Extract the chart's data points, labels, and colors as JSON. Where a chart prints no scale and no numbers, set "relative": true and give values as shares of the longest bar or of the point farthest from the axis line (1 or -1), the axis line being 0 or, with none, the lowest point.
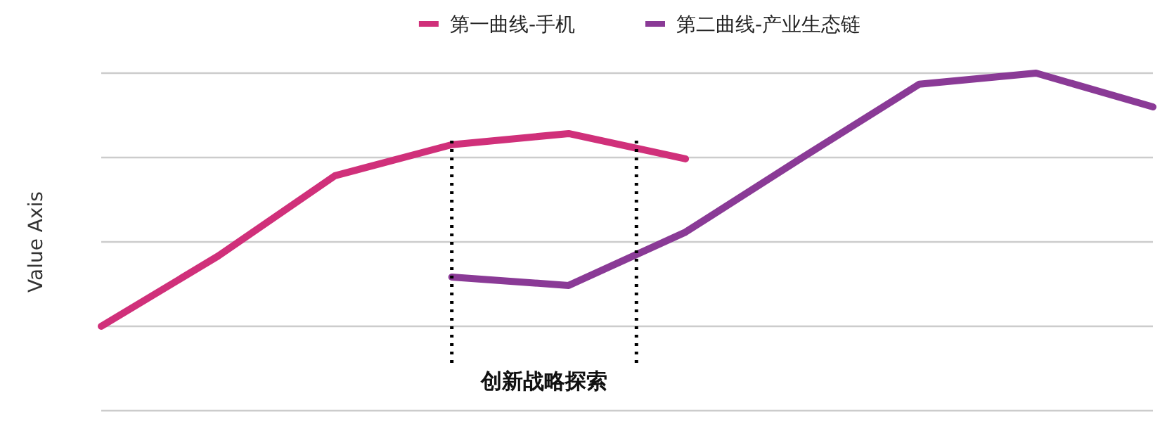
{
  "chart_data": {
    "type": "line",
    "relative": true,
    "ylabel": "Value Axis",
    "categories": [
      null,
      null,
      null,
      null,
      null,
      null,
      null,
      null,
      null,
      null
    ],
    "series": [
      {
        "name": "第一曲线-手机",
        "color": "#d0307a",
        "values": [
          0.25,
          0.458,
          0.696,
          0.788,
          0.821,
          0.746,
          null,
          null,
          null,
          null
        ]
      },
      {
        "name": "第二曲线-产业生态链",
        "color": "#8a3a96",
        "values": [
          null,
          null,
          null,
          0.396,
          0.371,
          0.529,
          0.75,
          0.967,
          1,
          0.9
        ]
      }
    ],
    "annotations": [
      "创新战略探索"
    ],
    "grid": true,
    "legend": "top",
    "marker": "none",
    "line_style": "solid"
  }
}
